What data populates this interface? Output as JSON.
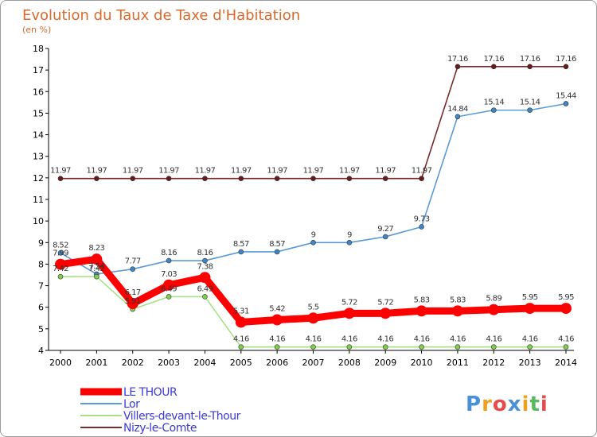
{
  "chart_data": {
    "type": "line",
    "title": "Evolution du Taux de Taxe d'Habitation",
    "subtitle": "(en %)",
    "x": [
      2000,
      2001,
      2002,
      2003,
      2004,
      2005,
      2006,
      2007,
      2008,
      2009,
      2010,
      2011,
      2012,
      2013,
      2014
    ],
    "ylim": [
      4,
      18
    ],
    "yticks": [
      4,
      5,
      6,
      7,
      8,
      9,
      10,
      11,
      12,
      13,
      14,
      15,
      16,
      17,
      18
    ],
    "grid": false,
    "legend_position": "bottom-left",
    "series": [
      {
        "name": "Nizy-le-Comte",
        "color": "#7a2a2a",
        "point_color": "#6a1a1a",
        "values": [
          11.97,
          11.97,
          11.97,
          11.97,
          11.97,
          11.97,
          11.97,
          11.97,
          11.97,
          11.97,
          11.97,
          17.16,
          17.16,
          17.16,
          17.16
        ],
        "labels": [
          "11.97",
          "11.97",
          "11.97",
          "11.97",
          "11.97",
          "11.97",
          "11.97",
          "11.97",
          "11.97",
          "11.97",
          "11.97",
          "17.16",
          "17.16",
          "17.16",
          "17.16"
        ]
      },
      {
        "name": "Lor",
        "color": "#5b9bd5",
        "point_color": "#3f86c8",
        "values": [
          8.52,
          7.54,
          7.77,
          8.16,
          8.16,
          8.57,
          8.57,
          9,
          9,
          9.27,
          9.73,
          14.84,
          15.14,
          15.14,
          15.44
        ],
        "labels": [
          "8.52",
          "7.54",
          "7.77",
          "8.16",
          "8.16",
          "8.57",
          "8.57",
          "9",
          "9",
          "9.27",
          "9.73",
          "14.84",
          "15.14",
          "15.14",
          "15.44"
        ]
      },
      {
        "name": "Villers-devant-le-Thour",
        "color": "#a8e08a",
        "point_color": "#7ed04a",
        "values": [
          7.42,
          7.42,
          5.91,
          6.49,
          6.49,
          4.16,
          4.16,
          4.16,
          4.16,
          4.16,
          4.16,
          4.16,
          4.16,
          4.16,
          4.16
        ],
        "labels": [
          "7.42",
          "7.42",
          "5.91",
          "6.49",
          "6.49",
          "4.16",
          "4.16",
          "4.16",
          "4.16",
          "4.16",
          "4.16",
          "4.16",
          "4.16",
          "4.16",
          "4.16"
        ]
      },
      {
        "name": "LE THOUR",
        "color": "#ff0000",
        "point_color": "#ff0000",
        "values": [
          7.99,
          8.23,
          6.17,
          7.03,
          7.38,
          5.31,
          5.42,
          5.5,
          5.72,
          5.72,
          5.83,
          5.83,
          5.89,
          5.95,
          5.95
        ],
        "labels": [
          "7.99",
          "8.23",
          "6.17",
          "7.03",
          "7.38",
          "5.31",
          "5.42",
          "5.5",
          "5.72",
          "5.72",
          "5.83",
          "5.83",
          "5.89",
          "5.95",
          "5.95"
        ]
      }
    ],
    "legend": [
      {
        "name": "LE THOUR",
        "color": "#ff0000",
        "thick": true
      },
      {
        "name": "Lor",
        "color": "#5b9bd5",
        "thick": false
      },
      {
        "name": "Villers-devant-le-Thour",
        "color": "#a8e08a",
        "thick": false
      },
      {
        "name": "Nizy-le-Comte",
        "color": "#7a2a2a",
        "thick": false
      }
    ]
  },
  "branding": {
    "logo_letters": [
      "P",
      "r",
      "o",
      "x",
      "i",
      "t",
      "i"
    ],
    "logo_colors": [
      "#4a90d9",
      "#f0a020",
      "#e84a4a",
      "#4a90d9",
      "#f0a020",
      "#5cb85c",
      "#e84a4a"
    ]
  }
}
